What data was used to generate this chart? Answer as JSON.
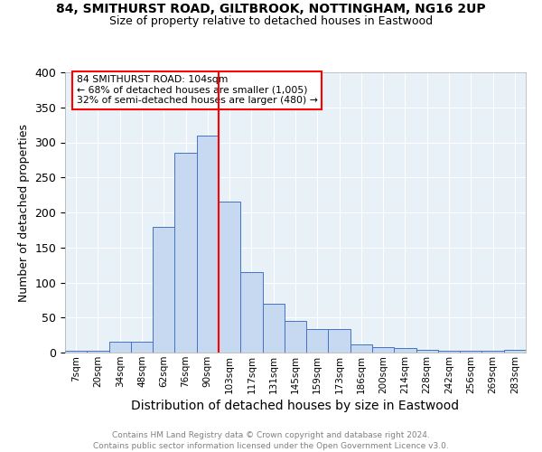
{
  "title1": "84, SMITHURST ROAD, GILTBROOK, NOTTINGHAM, NG16 2UP",
  "title2": "Size of property relative to detached houses in Eastwood",
  "xlabel": "Distribution of detached houses by size in Eastwood",
  "ylabel": "Number of detached properties",
  "footnote1": "Contains HM Land Registry data © Crown copyright and database right 2024.",
  "footnote2": "Contains public sector information licensed under the Open Government Licence v3.0.",
  "bin_labels": [
    "7sqm",
    "20sqm",
    "34sqm",
    "48sqm",
    "62sqm",
    "76sqm",
    "90sqm",
    "103sqm",
    "117sqm",
    "131sqm",
    "145sqm",
    "159sqm",
    "173sqm",
    "186sqm",
    "200sqm",
    "214sqm",
    "228sqm",
    "242sqm",
    "256sqm",
    "269sqm",
    "283sqm"
  ],
  "bar_heights": [
    2,
    2,
    16,
    16,
    180,
    285,
    310,
    215,
    115,
    70,
    45,
    33,
    33,
    12,
    8,
    6,
    4,
    2,
    2,
    2,
    4
  ],
  "bar_color": "#c6d9f1",
  "bar_edge_color": "#4472c4",
  "property_line_label": "84 SMITHURST ROAD: 104sqm",
  "annotation_line1": "← 68% of detached houses are smaller (1,005)",
  "annotation_line2": "32% of semi-detached houses are larger (480) →",
  "vline_color": "red",
  "vline_x_index": 7,
  "ylim_max": 400,
  "ytick_interval": 50,
  "background_color": "#e8f0f8"
}
